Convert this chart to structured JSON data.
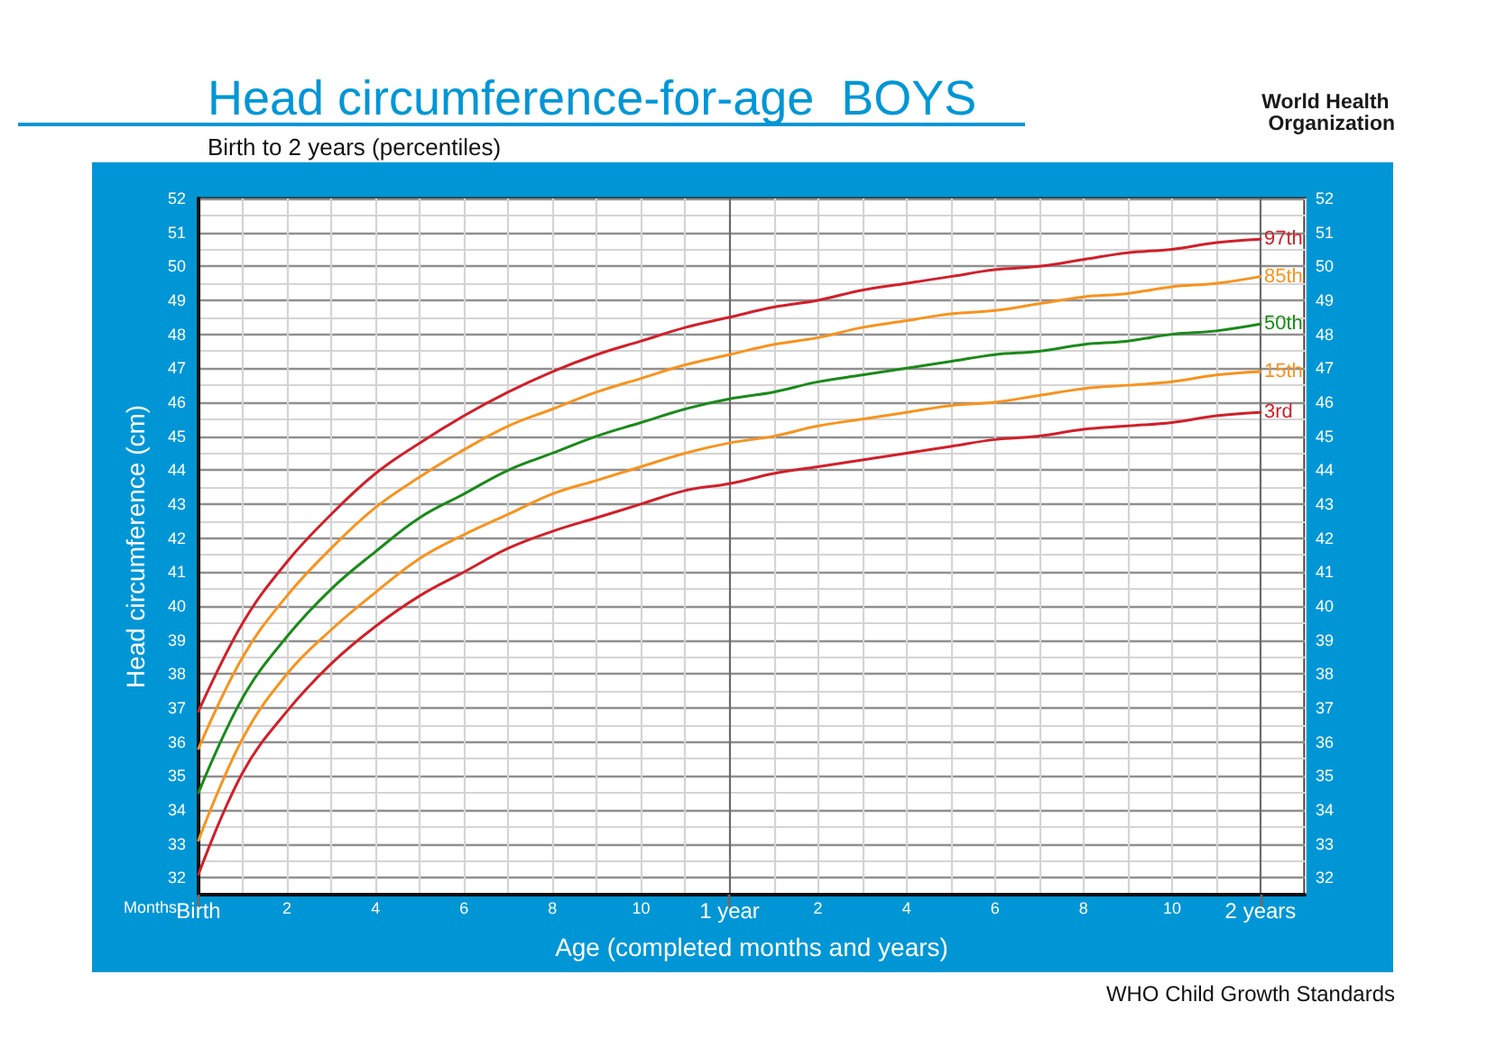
{
  "chart_data": {
    "type": "line",
    "title": "Head circumference-for-age  BOYS",
    "subtitle": "Birth to 2 years (percentiles)",
    "xlabel": "Age (completed months and years)",
    "ylabel": "Head circumference (cm)",
    "annotations": [
      "World Health Organization",
      "Months",
      "WHO Child Growth Standards"
    ],
    "categories": [
      "Birth",
      null,
      "2",
      null,
      "4",
      null,
      "6",
      null,
      "8",
      null,
      "10",
      null,
      "1 year",
      null,
      "2",
      null,
      "4",
      null,
      "6",
      null,
      "8",
      null,
      "10",
      null,
      "2 years",
      null
    ],
    "series": [
      {
        "name": "97th",
        "color": "#d0202a",
        "values": [
          36.9,
          39.5,
          41.3,
          42.7,
          43.9,
          44.8,
          45.6,
          46.3,
          46.9,
          47.4,
          47.8,
          48.2,
          48.5,
          48.8,
          49.0,
          49.3,
          49.5,
          49.7,
          49.9,
          50.0,
          50.2,
          50.4,
          50.5,
          50.7,
          50.8,
          null
        ]
      },
      {
        "name": "85th",
        "color": "#f7931e",
        "values": [
          35.8,
          38.5,
          40.3,
          41.7,
          42.9,
          43.8,
          44.6,
          45.3,
          45.8,
          46.3,
          46.7,
          47.1,
          47.4,
          47.7,
          47.9,
          48.2,
          48.4,
          48.6,
          48.7,
          48.9,
          49.1,
          49.2,
          49.4,
          49.5,
          49.7,
          null
        ]
      },
      {
        "name": "50th",
        "color": "#1a8a1a",
        "values": [
          34.5,
          37.3,
          39.1,
          40.5,
          41.6,
          42.6,
          43.3,
          44.0,
          44.5,
          45.0,
          45.4,
          45.8,
          46.1,
          46.3,
          46.6,
          46.8,
          47.0,
          47.2,
          47.4,
          47.5,
          47.7,
          47.8,
          48.0,
          48.1,
          48.3,
          null
        ]
      },
      {
        "name": "15th",
        "color": "#f7931e",
        "values": [
          33.1,
          36.1,
          38.0,
          39.3,
          40.4,
          41.4,
          42.1,
          42.7,
          43.3,
          43.7,
          44.1,
          44.5,
          44.8,
          45.0,
          45.3,
          45.5,
          45.7,
          45.9,
          46.0,
          46.2,
          46.4,
          46.5,
          46.6,
          46.8,
          46.9,
          null
        ]
      },
      {
        "name": "3rd",
        "color": "#d0202a",
        "values": [
          32.1,
          35.1,
          36.9,
          38.3,
          39.4,
          40.3,
          41.0,
          41.7,
          42.2,
          42.6,
          43.0,
          43.4,
          43.6,
          43.9,
          44.1,
          44.3,
          44.5,
          44.7,
          44.9,
          45.0,
          45.2,
          45.3,
          45.4,
          45.6,
          45.7,
          null
        ]
      }
    ],
    "ylim": [
      31.5,
      52
    ],
    "yticks": [
      32,
      {
        "value": 32.5,
        "label": null
      },
      33,
      {
        "value": 33.5,
        "label": null
      },
      34,
      {
        "value": 34.5,
        "label": null
      },
      35,
      {
        "value": 35.5,
        "label": null
      },
      36,
      {
        "value": 36.5,
        "label": null
      },
      37,
      {
        "value": 37.5,
        "label": null
      },
      38,
      {
        "value": 38.5,
        "label": null
      },
      39,
      {
        "value": 39.5,
        "label": null
      },
      40,
      {
        "value": 40.5,
        "label": null
      },
      41,
      {
        "value": 41.5,
        "label": null
      },
      42,
      {
        "value": 42.5,
        "label": null
      },
      43,
      {
        "value": 43.5,
        "label": null
      },
      44,
      {
        "value": 44.5,
        "label": null
      },
      45,
      {
        "value": 45.5,
        "label": null
      },
      46,
      {
        "value": 46.5,
        "label": null
      },
      47,
      {
        "value": 47.5,
        "label": null
      },
      48,
      {
        "value": 48.5,
        "label": null
      },
      49,
      {
        "value": 49.5,
        "label": null
      },
      50,
      {
        "value": 50.5,
        "label": null
      },
      51,
      {
        "value": 51.5,
        "label": null
      },
      52
    ],
    "y2lim": [
      31.5,
      52
    ],
    "y2ticks": [
      32,
      33,
      34,
      35,
      36,
      37,
      38,
      39,
      40,
      41,
      42,
      43,
      44,
      45,
      46,
      47,
      48,
      49,
      50,
      51,
      52
    ],
    "grid": true,
    "marker": "none"
  }
}
